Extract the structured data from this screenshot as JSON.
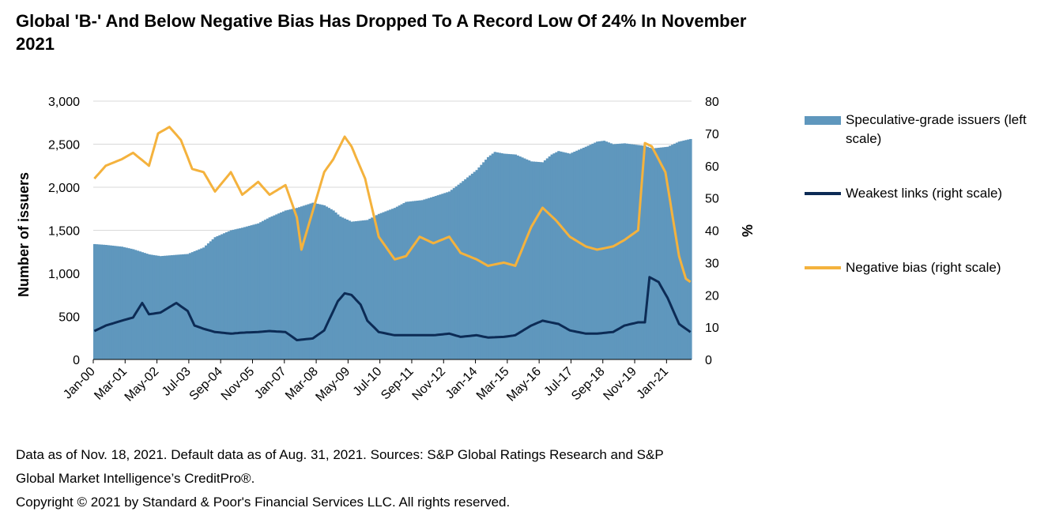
{
  "title": "Global 'B-' And Below Negative Bias Has Dropped To A Record Low Of 24% In November 2021",
  "footnote_lines": [
    "Data as of Nov. 18, 2021. Default data as of Aug. 31, 2021. Sources: S&P Global Ratings Research and S&P",
    "Global Market Intelligence’s CreditPro®.",
    "Copyright © 2021 by Standard & Poor's Financial Services LLC. All rights reserved."
  ],
  "legend": [
    {
      "label": "Speculative-grade issuers (left scale)",
      "color": "#5f97bd",
      "kind": "bar"
    },
    {
      "label": "Weakest links (right scale)",
      "color": "#0c2b55",
      "kind": "line"
    },
    {
      "label": "Negative bias (right scale)",
      "color": "#f4b23d",
      "kind": "line"
    }
  ],
  "chart_data": {
    "type": "bar+line",
    "title": "Global 'B-' And Below Negative Bias Has Dropped To A Record Low Of 24% In November 2021",
    "ylabel_left": "Number of issuers",
    "ylabel_right": "%",
    "ylim_left": [
      0,
      3000
    ],
    "ylim_right": [
      0,
      80
    ],
    "yticks_left": [
      "0",
      "500",
      "1,000",
      "1,500",
      "2,000",
      "2,500",
      "3,000"
    ],
    "yticks_right": [
      "0",
      "10",
      "20",
      "30",
      "40",
      "50",
      "60",
      "70",
      "80"
    ],
    "xticks": [
      "Jan-00",
      "Mar-01",
      "May-02",
      "Jul-03",
      "Sep-04",
      "Nov-05",
      "Jan-07",
      "Mar-08",
      "May-09",
      "Jul-10",
      "Sep-11",
      "Nov-12",
      "Jan-14",
      "Mar-15",
      "May-16",
      "Jul-17",
      "Sep-18",
      "Nov-19",
      "Jan-21"
    ],
    "x_start": "2000-01",
    "x_end": "2021-11",
    "gridlines": "horizontal",
    "legend_position": "right",
    "series": [
      {
        "name": "Speculative-grade issuers (left scale)",
        "type": "bar",
        "axis": "left",
        "color": "#5f97bd",
        "points": [
          [
            "2000-01",
            1340
          ],
          [
            "2000-06",
            1330
          ],
          [
            "2001-01",
            1310
          ],
          [
            "2001-06",
            1280
          ],
          [
            "2002-01",
            1220
          ],
          [
            "2002-06",
            1200
          ],
          [
            "2003-01",
            1215
          ],
          [
            "2003-06",
            1225
          ],
          [
            "2004-01",
            1300
          ],
          [
            "2004-06",
            1420
          ],
          [
            "2005-01",
            1500
          ],
          [
            "2005-06",
            1530
          ],
          [
            "2006-01",
            1580
          ],
          [
            "2006-06",
            1650
          ],
          [
            "2007-01",
            1730
          ],
          [
            "2007-06",
            1760
          ],
          [
            "2008-01",
            1820
          ],
          [
            "2008-06",
            1790
          ],
          [
            "2008-10",
            1730
          ],
          [
            "2009-01",
            1660
          ],
          [
            "2009-06",
            1600
          ],
          [
            "2010-01",
            1620
          ],
          [
            "2010-06",
            1690
          ],
          [
            "2011-01",
            1760
          ],
          [
            "2011-06",
            1830
          ],
          [
            "2012-01",
            1850
          ],
          [
            "2012-06",
            1890
          ],
          [
            "2013-01",
            1950
          ],
          [
            "2013-06",
            2050
          ],
          [
            "2014-01",
            2200
          ],
          [
            "2014-06",
            2350
          ],
          [
            "2014-09",
            2410
          ],
          [
            "2015-01",
            2390
          ],
          [
            "2015-06",
            2380
          ],
          [
            "2016-01",
            2300
          ],
          [
            "2016-06",
            2290
          ],
          [
            "2016-10",
            2380
          ],
          [
            "2017-01",
            2420
          ],
          [
            "2017-06",
            2390
          ],
          [
            "2018-01",
            2470
          ],
          [
            "2018-06",
            2530
          ],
          [
            "2018-09",
            2540
          ],
          [
            "2019-01",
            2500
          ],
          [
            "2019-06",
            2510
          ],
          [
            "2019-12",
            2490
          ],
          [
            "2020-03",
            2480
          ],
          [
            "2020-06",
            2450
          ],
          [
            "2021-01",
            2470
          ],
          [
            "2021-06",
            2530
          ],
          [
            "2021-11",
            2560
          ]
        ]
      },
      {
        "name": "Weakest links (right scale)",
        "type": "line",
        "axis": "right",
        "color": "#0c2b55",
        "points": [
          [
            "2000-01",
            8.8
          ],
          [
            "2000-06",
            10.5
          ],
          [
            "2001-01",
            12.0
          ],
          [
            "2001-06",
            13.0
          ],
          [
            "2001-10",
            17.5
          ],
          [
            "2002-01",
            14.0
          ],
          [
            "2002-06",
            14.5
          ],
          [
            "2003-01",
            17.5
          ],
          [
            "2003-06",
            15.0
          ],
          [
            "2003-09",
            10.5
          ],
          [
            "2004-01",
            9.5
          ],
          [
            "2004-06",
            8.5
          ],
          [
            "2005-01",
            8.0
          ],
          [
            "2005-06",
            8.3
          ],
          [
            "2006-01",
            8.5
          ],
          [
            "2006-06",
            8.8
          ],
          [
            "2007-01",
            8.5
          ],
          [
            "2007-06",
            6.0
          ],
          [
            "2008-01",
            6.5
          ],
          [
            "2008-06",
            9.0
          ],
          [
            "2008-12",
            18.0
          ],
          [
            "2009-03",
            20.5
          ],
          [
            "2009-06",
            20.0
          ],
          [
            "2009-10",
            17.0
          ],
          [
            "2010-01",
            12.0
          ],
          [
            "2010-06",
            8.5
          ],
          [
            "2011-01",
            7.5
          ],
          [
            "2011-06",
            7.5
          ],
          [
            "2012-01",
            7.5
          ],
          [
            "2012-06",
            7.5
          ],
          [
            "2013-01",
            8.0
          ],
          [
            "2013-06",
            7.0
          ],
          [
            "2014-01",
            7.5
          ],
          [
            "2014-06",
            6.8
          ],
          [
            "2015-01",
            7.0
          ],
          [
            "2015-06",
            7.5
          ],
          [
            "2016-01",
            10.5
          ],
          [
            "2016-06",
            12.0
          ],
          [
            "2017-01",
            11.0
          ],
          [
            "2017-06",
            9.0
          ],
          [
            "2018-01",
            8.0
          ],
          [
            "2018-06",
            8.0
          ],
          [
            "2019-01",
            8.5
          ],
          [
            "2019-06",
            10.5
          ],
          [
            "2019-12",
            11.5
          ],
          [
            "2020-03",
            11.5
          ],
          [
            "2020-05",
            25.5
          ],
          [
            "2020-09",
            24.0
          ],
          [
            "2021-01",
            19.0
          ],
          [
            "2021-06",
            11.0
          ],
          [
            "2021-11",
            8.5
          ]
        ]
      },
      {
        "name": "Negative bias (right scale)",
        "type": "line",
        "axis": "right",
        "color": "#f4b23d",
        "points": [
          [
            "2000-01",
            56
          ],
          [
            "2000-06",
            60
          ],
          [
            "2001-01",
            62
          ],
          [
            "2001-06",
            64
          ],
          [
            "2002-01",
            60
          ],
          [
            "2002-05",
            70
          ],
          [
            "2002-10",
            72
          ],
          [
            "2003-03",
            68
          ],
          [
            "2003-08",
            59
          ],
          [
            "2004-01",
            58
          ],
          [
            "2004-06",
            52
          ],
          [
            "2005-01",
            58
          ],
          [
            "2005-06",
            51
          ],
          [
            "2006-01",
            55
          ],
          [
            "2006-06",
            51
          ],
          [
            "2007-01",
            54
          ],
          [
            "2007-06",
            44
          ],
          [
            "2007-08",
            34
          ],
          [
            "2008-01",
            46
          ],
          [
            "2008-06",
            58
          ],
          [
            "2008-10",
            62
          ],
          [
            "2009-03",
            69
          ],
          [
            "2009-06",
            66
          ],
          [
            "2009-12",
            56
          ],
          [
            "2010-06",
            38
          ],
          [
            "2011-01",
            31
          ],
          [
            "2011-06",
            32
          ],
          [
            "2011-12",
            38
          ],
          [
            "2012-06",
            36
          ],
          [
            "2013-01",
            38
          ],
          [
            "2013-06",
            33
          ],
          [
            "2014-01",
            31
          ],
          [
            "2014-06",
            29
          ],
          [
            "2015-01",
            30
          ],
          [
            "2015-06",
            29
          ],
          [
            "2016-01",
            41
          ],
          [
            "2016-06",
            47
          ],
          [
            "2016-12",
            43
          ],
          [
            "2017-06",
            38
          ],
          [
            "2018-01",
            35
          ],
          [
            "2018-06",
            34
          ],
          [
            "2019-01",
            35
          ],
          [
            "2019-06",
            37
          ],
          [
            "2019-12",
            40
          ],
          [
            "2020-03",
            67
          ],
          [
            "2020-06",
            66
          ],
          [
            "2020-12",
            58
          ],
          [
            "2021-06",
            32
          ],
          [
            "2021-09",
            25
          ],
          [
            "2021-11",
            24
          ]
        ]
      }
    ]
  }
}
